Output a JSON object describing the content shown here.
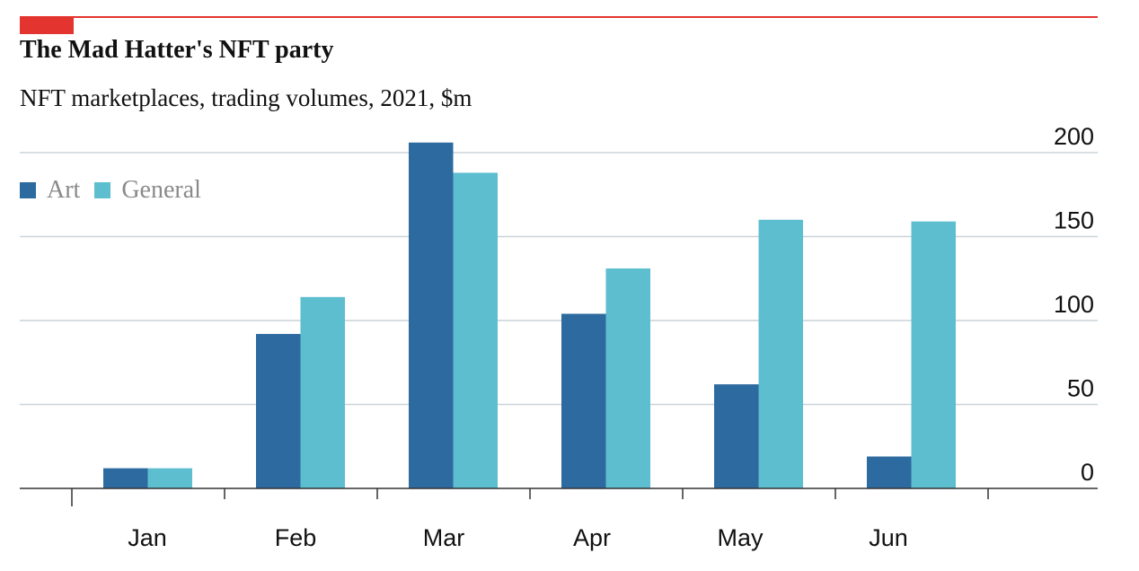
{
  "chart_data": {
    "type": "bar",
    "title": "The Mad Hatter's NFT party",
    "subtitle": "NFT marketplaces, trading volumes, 2021, $m",
    "categories": [
      "Jan",
      "Feb",
      "Mar",
      "Apr",
      "May",
      "Jun"
    ],
    "series": [
      {
        "name": "Art",
        "color": "#2d6a9f",
        "values": [
          12,
          92,
          206,
          104,
          62,
          19
        ]
      },
      {
        "name": "General",
        "color": "#5dbecf",
        "values": [
          12,
          114,
          188,
          131,
          160,
          159
        ]
      }
    ],
    "ylim": [
      0,
      200
    ],
    "yticks": [
      "200",
      "150",
      "100",
      "50",
      "0"
    ],
    "ytick_values": [
      200,
      150,
      100,
      50,
      0
    ],
    "axis_side": "right",
    "grid": true,
    "legend_position": "top-left"
  }
}
